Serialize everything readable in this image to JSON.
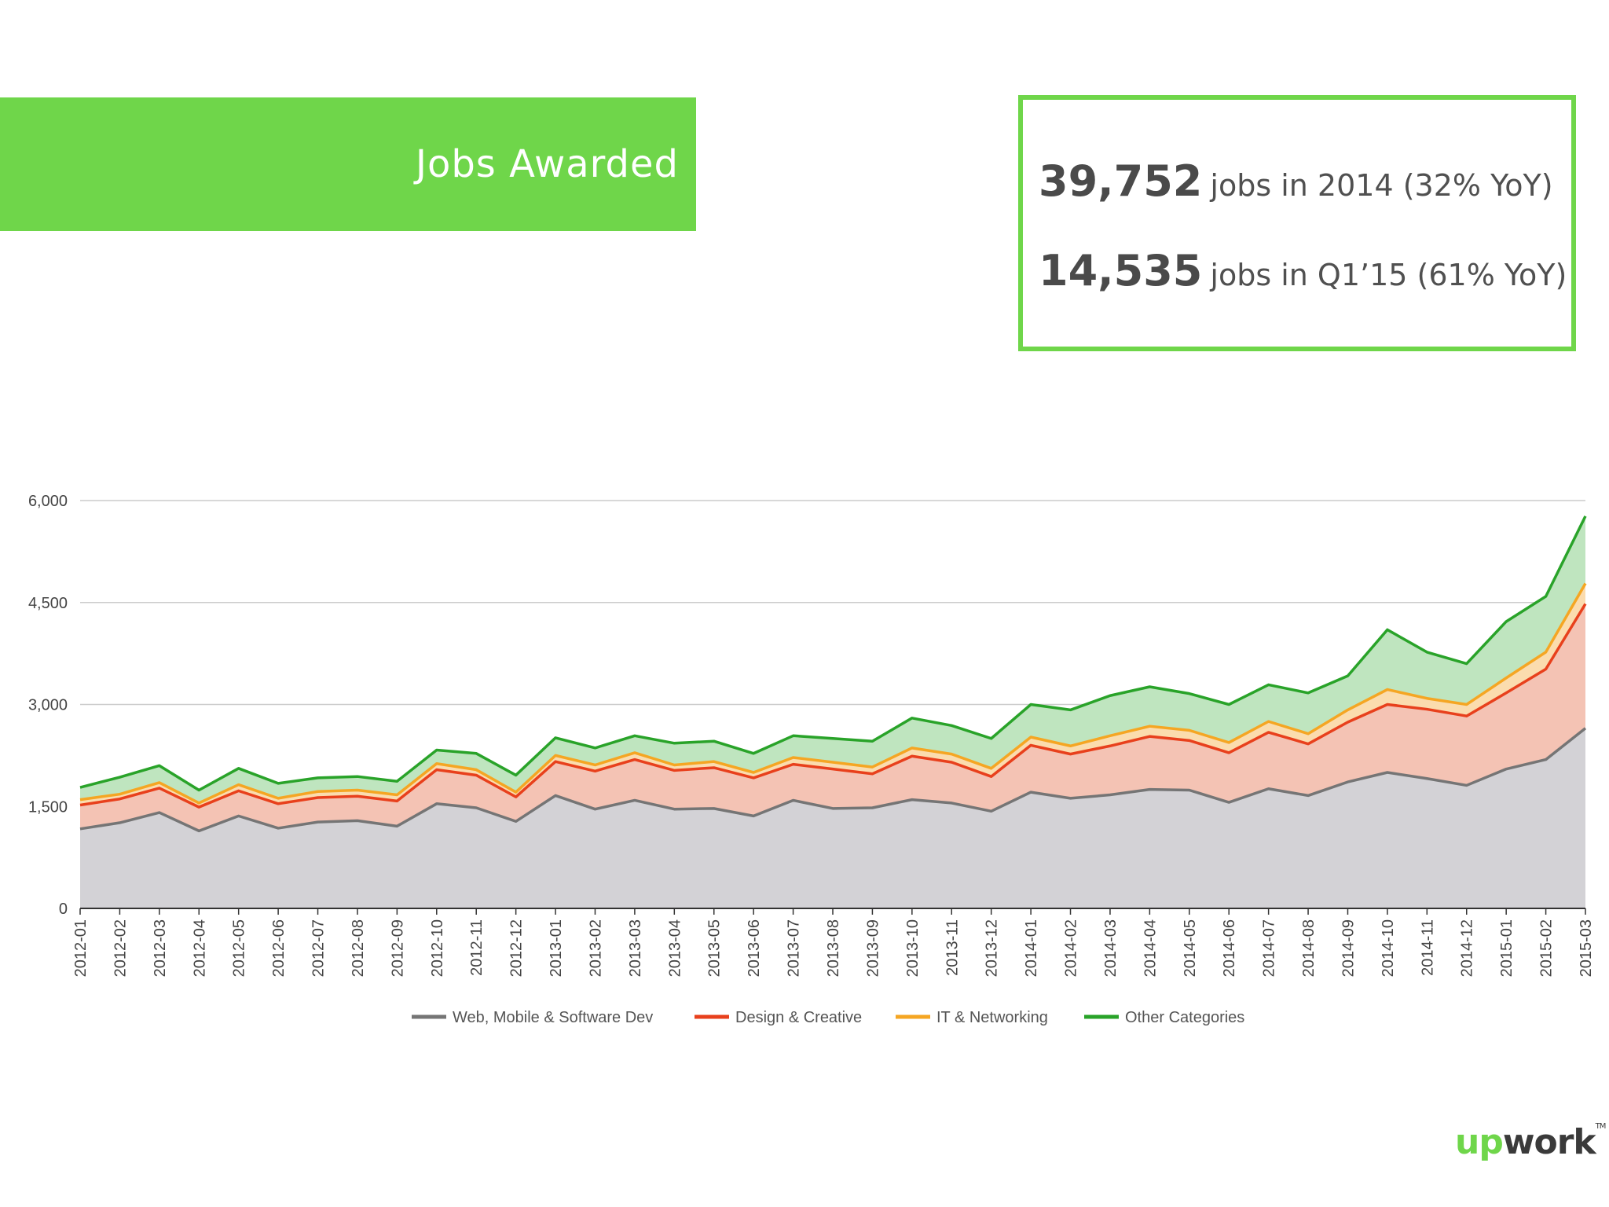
{
  "banner": {
    "title": "Jobs Awarded"
  },
  "stats": [
    {
      "number": "39,752",
      "text": "jobs in 2014 (32% YoY)"
    },
    {
      "number": "14,535",
      "text": "jobs in Q1’15 (61% YoY)"
    }
  ],
  "logo": {
    "up": "up",
    "work": "work",
    "tm": "TM"
  },
  "colors": {
    "brand_green": "#6fd64a",
    "web": "#757575",
    "web_fill": "#d3d2d6",
    "design": "#e8401c",
    "design_fill": "#f4c3b4",
    "it": "#f5a623",
    "it_fill": "#fbdcae",
    "other": "#29a329",
    "other_fill": "#bfe5bf"
  },
  "chart_data": {
    "type": "area",
    "stacked": true,
    "title": "",
    "xlabel": "",
    "ylabel": "",
    "ylim": [
      0,
      6000
    ],
    "yticks": [
      0,
      1500,
      3000,
      4500,
      6000
    ],
    "ytick_labels": [
      "0",
      "1,500",
      "3,000",
      "4,500",
      "6,000"
    ],
    "grid": true,
    "legend_position": "bottom",
    "x": [
      "2012-01",
      "2012-02",
      "2012-03",
      "2012-04",
      "2012-05",
      "2012-06",
      "2012-07",
      "2012-08",
      "2012-09",
      "2012-10",
      "2012-11",
      "2012-12",
      "2013-01",
      "2013-02",
      "2013-03",
      "2013-04",
      "2013-05",
      "2013-06",
      "2013-07",
      "2013-08",
      "2013-09",
      "2013-10",
      "2013-11",
      "2013-12",
      "2014-01",
      "2014-02",
      "2014-03",
      "2014-04",
      "2014-05",
      "2014-06",
      "2014-07",
      "2014-08",
      "2014-09",
      "2014-10",
      "2014-11",
      "2014-12",
      "2015-01",
      "2015-02",
      "2015-03"
    ],
    "series": [
      {
        "name": "Web, Mobile & Software Dev",
        "values": [
          1170,
          1260,
          1410,
          1140,
          1360,
          1180,
          1270,
          1290,
          1210,
          1540,
          1480,
          1280,
          1660,
          1460,
          1590,
          1460,
          1470,
          1360,
          1590,
          1470,
          1480,
          1600,
          1550,
          1430,
          1710,
          1620,
          1670,
          1750,
          1740,
          1560,
          1760,
          1660,
          1860,
          2000,
          1910,
          1810,
          2050,
          2190,
          2650
        ]
      },
      {
        "name": "Design & Creative",
        "values": [
          350,
          350,
          360,
          350,
          370,
          360,
          360,
          360,
          370,
          500,
          480,
          360,
          500,
          560,
          600,
          570,
          600,
          560,
          530,
          580,
          500,
          640,
          600,
          510,
          690,
          650,
          720,
          780,
          730,
          730,
          830,
          760,
          880,
          1000,
          1020,
          1020,
          1120,
          1330,
          1830
        ]
      },
      {
        "name": "IT & Networking",
        "values": [
          80,
          70,
          80,
          60,
          90,
          80,
          90,
          90,
          90,
          90,
          80,
          70,
          90,
          90,
          100,
          80,
          90,
          80,
          100,
          100,
          100,
          120,
          120,
          120,
          120,
          120,
          150,
          150,
          150,
          150,
          160,
          150,
          180,
          220,
          160,
          170,
          220,
          250,
          300
        ]
      },
      {
        "name": "Other Categories",
        "values": [
          180,
          250,
          250,
          190,
          240,
          220,
          200,
          200,
          200,
          200,
          240,
          250,
          260,
          250,
          250,
          320,
          300,
          280,
          320,
          350,
          380,
          440,
          420,
          440,
          480,
          530,
          590,
          580,
          540,
          560,
          540,
          600,
          500,
          880,
          680,
          600,
          830,
          820,
          990
        ]
      }
    ]
  }
}
